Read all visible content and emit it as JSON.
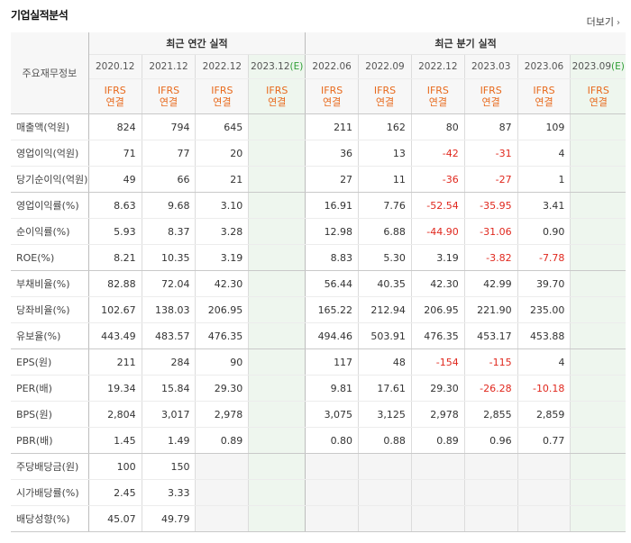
{
  "header": {
    "title": "기업실적분석",
    "more_label": "더보기",
    "more_arrow": "›"
  },
  "table": {
    "side_label": "주요재무정보",
    "annual_label": "최근 연간 실적",
    "quarter_label": "최근 분기 실적",
    "ifrs_line1": "IFRS",
    "ifrs_line2": "연결",
    "est_mark": "(E)",
    "annual_periods": [
      "2020.12",
      "2021.12",
      "2022.12",
      "2023.12"
    ],
    "quarter_periods": [
      "2022.06",
      "2022.09",
      "2022.12",
      "2023.03",
      "2023.06",
      "2023.09"
    ],
    "rows": [
      {
        "label": "매출액(억원)",
        "values": [
          "824",
          "794",
          "645",
          "",
          "211",
          "162",
          "80",
          "87",
          "109",
          ""
        ]
      },
      {
        "label": "영업이익(억원)",
        "values": [
          "71",
          "77",
          "20",
          "",
          "36",
          "13",
          "-42",
          "-31",
          "4",
          ""
        ]
      },
      {
        "label": "당기순이익(억원)",
        "values": [
          "49",
          "66",
          "21",
          "",
          "27",
          "11",
          "-36",
          "-27",
          "1",
          ""
        ]
      },
      {
        "label": "영업이익률(%)",
        "values": [
          "8.63",
          "9.68",
          "3.10",
          "",
          "16.91",
          "7.76",
          "-52.54",
          "-35.95",
          "3.41",
          ""
        ]
      },
      {
        "label": "순이익률(%)",
        "values": [
          "5.93",
          "8.37",
          "3.28",
          "",
          "12.98",
          "6.88",
          "-44.90",
          "-31.06",
          "0.90",
          ""
        ]
      },
      {
        "label": "ROE(%)",
        "values": [
          "8.21",
          "10.35",
          "3.19",
          "",
          "8.83",
          "5.30",
          "3.19",
          "-3.82",
          "-7.78",
          ""
        ]
      },
      {
        "label": "부채비율(%)",
        "values": [
          "82.88",
          "72.04",
          "42.30",
          "",
          "56.44",
          "40.35",
          "42.30",
          "42.99",
          "39.70",
          ""
        ]
      },
      {
        "label": "당좌비율(%)",
        "values": [
          "102.67",
          "138.03",
          "206.95",
          "",
          "165.22",
          "212.94",
          "206.95",
          "221.90",
          "235.00",
          ""
        ]
      },
      {
        "label": "유보율(%)",
        "values": [
          "443.49",
          "483.57",
          "476.35",
          "",
          "494.46",
          "503.91",
          "476.35",
          "453.17",
          "453.88",
          ""
        ]
      },
      {
        "label": "EPS(원)",
        "values": [
          "211",
          "284",
          "90",
          "",
          "117",
          "48",
          "-154",
          "-115",
          "4",
          ""
        ]
      },
      {
        "label": "PER(배)",
        "values": [
          "19.34",
          "15.84",
          "29.30",
          "",
          "9.81",
          "17.61",
          "29.30",
          "-26.28",
          "-10.18",
          ""
        ]
      },
      {
        "label": "BPS(원)",
        "values": [
          "2,804",
          "3,017",
          "2,978",
          "",
          "3,075",
          "3,125",
          "2,978",
          "2,855",
          "2,859",
          ""
        ]
      },
      {
        "label": "PBR(배)",
        "values": [
          "1.45",
          "1.49",
          "0.89",
          "",
          "0.80",
          "0.88",
          "0.89",
          "0.96",
          "0.77",
          ""
        ]
      },
      {
        "label": "주당배당금(원)",
        "values": [
          "100",
          "150",
          "",
          "",
          "",
          "",
          "",
          "",
          "",
          ""
        ]
      },
      {
        "label": "시가배당률(%)",
        "values": [
          "2.45",
          "3.33",
          "",
          "",
          "",
          "",
          "",
          "",
          "",
          ""
        ]
      },
      {
        "label": "배당성향(%)",
        "values": [
          "45.07",
          "49.79",
          "",
          "",
          "",
          "",
          "",
          "",
          "",
          ""
        ]
      }
    ],
    "group_ends": [
      2,
      5,
      8,
      12,
      15
    ]
  }
}
